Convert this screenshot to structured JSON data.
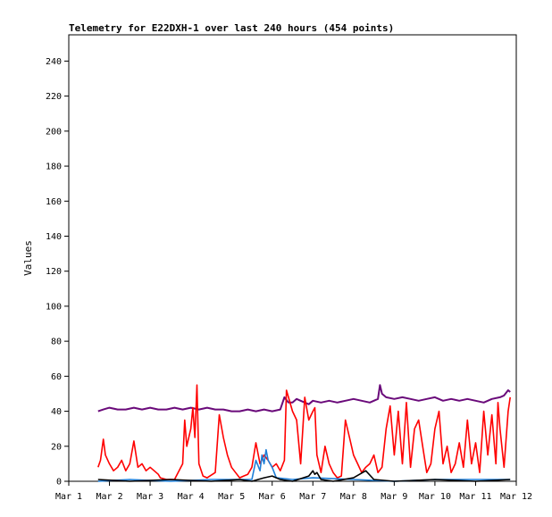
{
  "chart_data": {
    "type": "line",
    "title": "Telemetry for E22DXH-1 over last 240 hours (454 points)",
    "ylabel": "Values",
    "xlabel": "",
    "ylim": [
      0,
      255
    ],
    "xlim": [
      1,
      12
    ],
    "yticks": [
      0,
      20,
      40,
      60,
      80,
      100,
      120,
      140,
      160,
      180,
      200,
      220,
      240
    ],
    "xticks": [
      {
        "value": 1,
        "label": "Mar 1"
      },
      {
        "value": 2,
        "label": "Mar 2"
      },
      {
        "value": 3,
        "label": "Mar 3"
      },
      {
        "value": 4,
        "label": "Mar 4"
      },
      {
        "value": 5,
        "label": "Mar 5"
      },
      {
        "value": 6,
        "label": "Mar 6"
      },
      {
        "value": 7,
        "label": "Mar 7"
      },
      {
        "value": 8,
        "label": "Mar 8"
      },
      {
        "value": 9,
        "label": "Mar 9"
      },
      {
        "value": 10,
        "label": "Mar 10"
      },
      {
        "value": 11,
        "label": "Mar 11"
      },
      {
        "value": 12,
        "label": "Mar 12"
      }
    ],
    "grid": false,
    "series": [
      {
        "color": "#6a0a7a",
        "x": [
          1.72,
          1.85,
          2.0,
          2.2,
          2.4,
          2.6,
          2.8,
          3.0,
          3.2,
          3.4,
          3.6,
          3.8,
          4.0,
          4.2,
          4.4,
          4.6,
          4.8,
          5.0,
          5.2,
          5.4,
          5.6,
          5.8,
          6.0,
          6.2,
          6.3,
          6.4,
          6.5,
          6.6,
          6.7,
          6.8,
          6.9,
          7.0,
          7.2,
          7.4,
          7.6,
          7.8,
          8.0,
          8.2,
          8.4,
          8.6,
          8.65,
          8.7,
          8.8,
          9.0,
          9.2,
          9.4,
          9.6,
          9.8,
          10.0,
          10.2,
          10.4,
          10.6,
          10.8,
          11.0,
          11.2,
          11.4,
          11.6,
          11.7,
          11.8,
          11.85
        ],
        "values": [
          40,
          41,
          42,
          41,
          41,
          42,
          41,
          42,
          41,
          41,
          42,
          41,
          42,
          41,
          42,
          41,
          41,
          40,
          40,
          41,
          40,
          41,
          40,
          41,
          48,
          45,
          45,
          47,
          46,
          45,
          44,
          46,
          45,
          46,
          45,
          46,
          47,
          46,
          45,
          47,
          55,
          50,
          48,
          47,
          48,
          47,
          46,
          47,
          48,
          46,
          47,
          46,
          47,
          46,
          45,
          47,
          48,
          49,
          52,
          51
        ]
      },
      {
        "color": "#ff0000",
        "x": [
          1.72,
          1.78,
          1.85,
          1.9,
          2.0,
          2.1,
          2.2,
          2.3,
          2.4,
          2.5,
          2.6,
          2.7,
          2.8,
          2.9,
          3.0,
          3.1,
          3.2,
          3.25,
          3.4,
          3.6,
          3.8,
          3.85,
          3.9,
          4.0,
          4.05,
          4.1,
          4.15,
          4.2,
          4.3,
          4.4,
          4.6,
          4.7,
          4.8,
          4.9,
          5.0,
          5.1,
          5.2,
          5.3,
          5.4,
          5.5,
          5.6,
          5.7,
          5.8,
          5.9,
          6.0,
          6.1,
          6.2,
          6.3,
          6.35,
          6.5,
          6.6,
          6.7,
          6.8,
          6.9,
          7.0,
          7.05,
          7.1,
          7.2,
          7.3,
          7.4,
          7.5,
          7.6,
          7.7,
          7.8,
          7.9,
          8.0,
          8.1,
          8.2,
          8.3,
          8.4,
          8.5,
          8.6,
          8.7,
          8.8,
          8.9,
          9.0,
          9.1,
          9.2,
          9.3,
          9.4,
          9.5,
          9.6,
          9.7,
          9.8,
          9.9,
          10.0,
          10.1,
          10.2,
          10.3,
          10.4,
          10.5,
          10.6,
          10.7,
          10.8,
          10.9,
          11.0,
          11.1,
          11.2,
          11.3,
          11.4,
          11.5,
          11.55,
          11.6,
          11.7,
          11.8,
          11.85
        ],
        "values": [
          8,
          12,
          24,
          15,
          10,
          6,
          8,
          12,
          6,
          10,
          23,
          8,
          10,
          6,
          8,
          6,
          4,
          2,
          1,
          1,
          10,
          35,
          20,
          30,
          42,
          25,
          55,
          10,
          3,
          2,
          5,
          38,
          25,
          15,
          8,
          5,
          2,
          3,
          4,
          8,
          22,
          10,
          15,
          12,
          8,
          10,
          6,
          12,
          52,
          40,
          35,
          10,
          48,
          35,
          40,
          42,
          15,
          5,
          20,
          10,
          5,
          2,
          3,
          35,
          25,
          15,
          10,
          5,
          8,
          10,
          15,
          5,
          8,
          30,
          43,
          15,
          40,
          10,
          45,
          8,
          30,
          35,
          20,
          5,
          10,
          30,
          40,
          10,
          20,
          5,
          10,
          22,
          8,
          35,
          10,
          22,
          5,
          40,
          15,
          38,
          10,
          45,
          30,
          8,
          40,
          48
        ]
      },
      {
        "color": "#1e7fd8",
        "x": [
          1.72,
          2.5,
          3.5,
          4.5,
          5.5,
          5.6,
          5.7,
          5.75,
          5.8,
          5.85,
          5.9,
          6.0,
          6.1,
          6.5,
          7.0,
          8.0,
          9.0,
          10.0,
          11.0,
          11.85
        ],
        "values": [
          0,
          1,
          0,
          1,
          1,
          12,
          6,
          15,
          10,
          18,
          12,
          8,
          2,
          1,
          2,
          1,
          0,
          1,
          1,
          1
        ]
      },
      {
        "color": "#000000",
        "x": [
          1.72,
          2.5,
          3.5,
          4.5,
          5.2,
          5.5,
          5.8,
          6.0,
          6.2,
          6.5,
          6.9,
          7.0,
          7.05,
          7.1,
          7.2,
          7.5,
          8.0,
          8.3,
          8.5,
          9.0,
          10.0,
          11.0,
          11.85
        ],
        "values": [
          1,
          0,
          1,
          0,
          1,
          0,
          2,
          3,
          1,
          0,
          3,
          6,
          4,
          5,
          1,
          0,
          2,
          6,
          1,
          0,
          1,
          0,
          1
        ]
      }
    ]
  }
}
